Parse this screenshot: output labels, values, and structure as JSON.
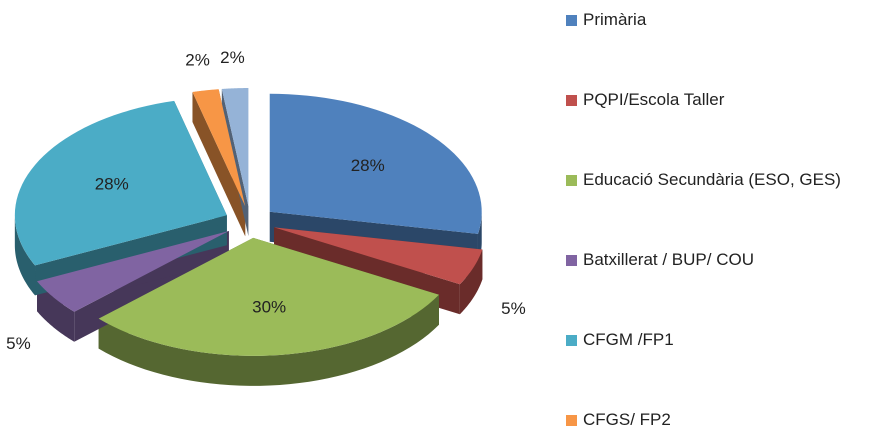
{
  "chart_data": {
    "type": "pie",
    "categories": [
      "Primària",
      "PQPI/Escola Taller",
      "Educació Secundària (ESO, GES)",
      "Batxillerat / BUP/ COU",
      "CFGM /FP1",
      "CFGS/ FP2",
      null
    ],
    "values": [
      28,
      5,
      30,
      5,
      28,
      2,
      2
    ],
    "value_labels": [
      "28%",
      "5%",
      "30%",
      "5%",
      "28%",
      "2%",
      "2%"
    ],
    "colors": [
      "#4f81bd",
      "#c0504d",
      "#9bbb59",
      "#8064a2",
      "#4bacc6",
      "#f79646",
      "#95b3d7"
    ],
    "legend": "right"
  }
}
